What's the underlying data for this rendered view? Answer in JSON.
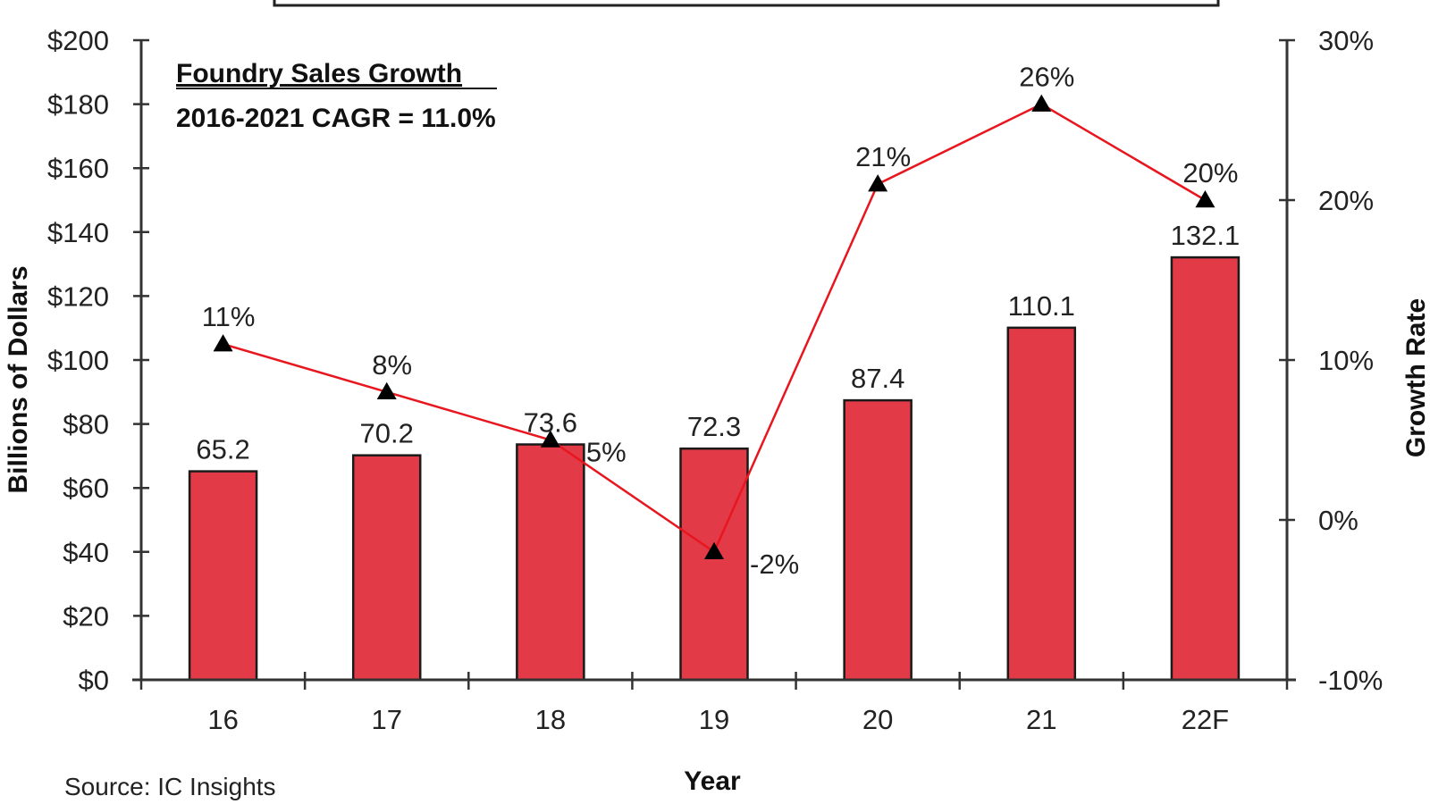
{
  "chart_data": {
    "type": "bar",
    "title": "",
    "annotation": {
      "title": "Foundry Sales Growth",
      "subtitle": "2016-2021 CAGR = 11.0%"
    },
    "categories": [
      "16",
      "17",
      "18",
      "19",
      "20",
      "21",
      "22F"
    ],
    "series": [
      {
        "name": "Foundry Sales",
        "type": "bar",
        "axis": "left",
        "color": "#E23A47",
        "values": [
          65.2,
          70.2,
          73.6,
          72.3,
          87.4,
          110.1,
          132.1
        ],
        "labels": [
          "65.2",
          "70.2",
          "73.6",
          "72.3",
          "87.4",
          "110.1",
          "132.1"
        ]
      },
      {
        "name": "Growth Rate",
        "type": "line",
        "axis": "right",
        "color": "#E8161E",
        "marker": "triangle",
        "marker_color": "#000000",
        "values": [
          11,
          8,
          5,
          -2,
          21,
          26,
          20
        ],
        "labels": [
          "11%",
          "8%",
          "5%",
          "-2%",
          "21%",
          "26%",
          "20%"
        ],
        "label_positions": [
          "above",
          "above",
          "right",
          "right",
          "above",
          "above",
          "above"
        ]
      }
    ],
    "xlabel": "Year",
    "ylabel": "Billions of Dollars",
    "y2label": "Growth Rate",
    "ylim": [
      0,
      200
    ],
    "y2lim": [
      -10,
      30
    ],
    "yticks": [
      "$0",
      "$20",
      "$40",
      "$60",
      "$80",
      "$100",
      "$120",
      "$140",
      "$160",
      "$180",
      "$200"
    ],
    "ytick_values": [
      0,
      20,
      40,
      60,
      80,
      100,
      120,
      140,
      160,
      180,
      200
    ],
    "y2ticks": [
      "-10%",
      "0%",
      "10%",
      "20%",
      "30%"
    ],
    "y2tick_values": [
      -10,
      0,
      10,
      20,
      30
    ],
    "grid": false,
    "legend": "none",
    "source": "Source: IC Insights"
  }
}
